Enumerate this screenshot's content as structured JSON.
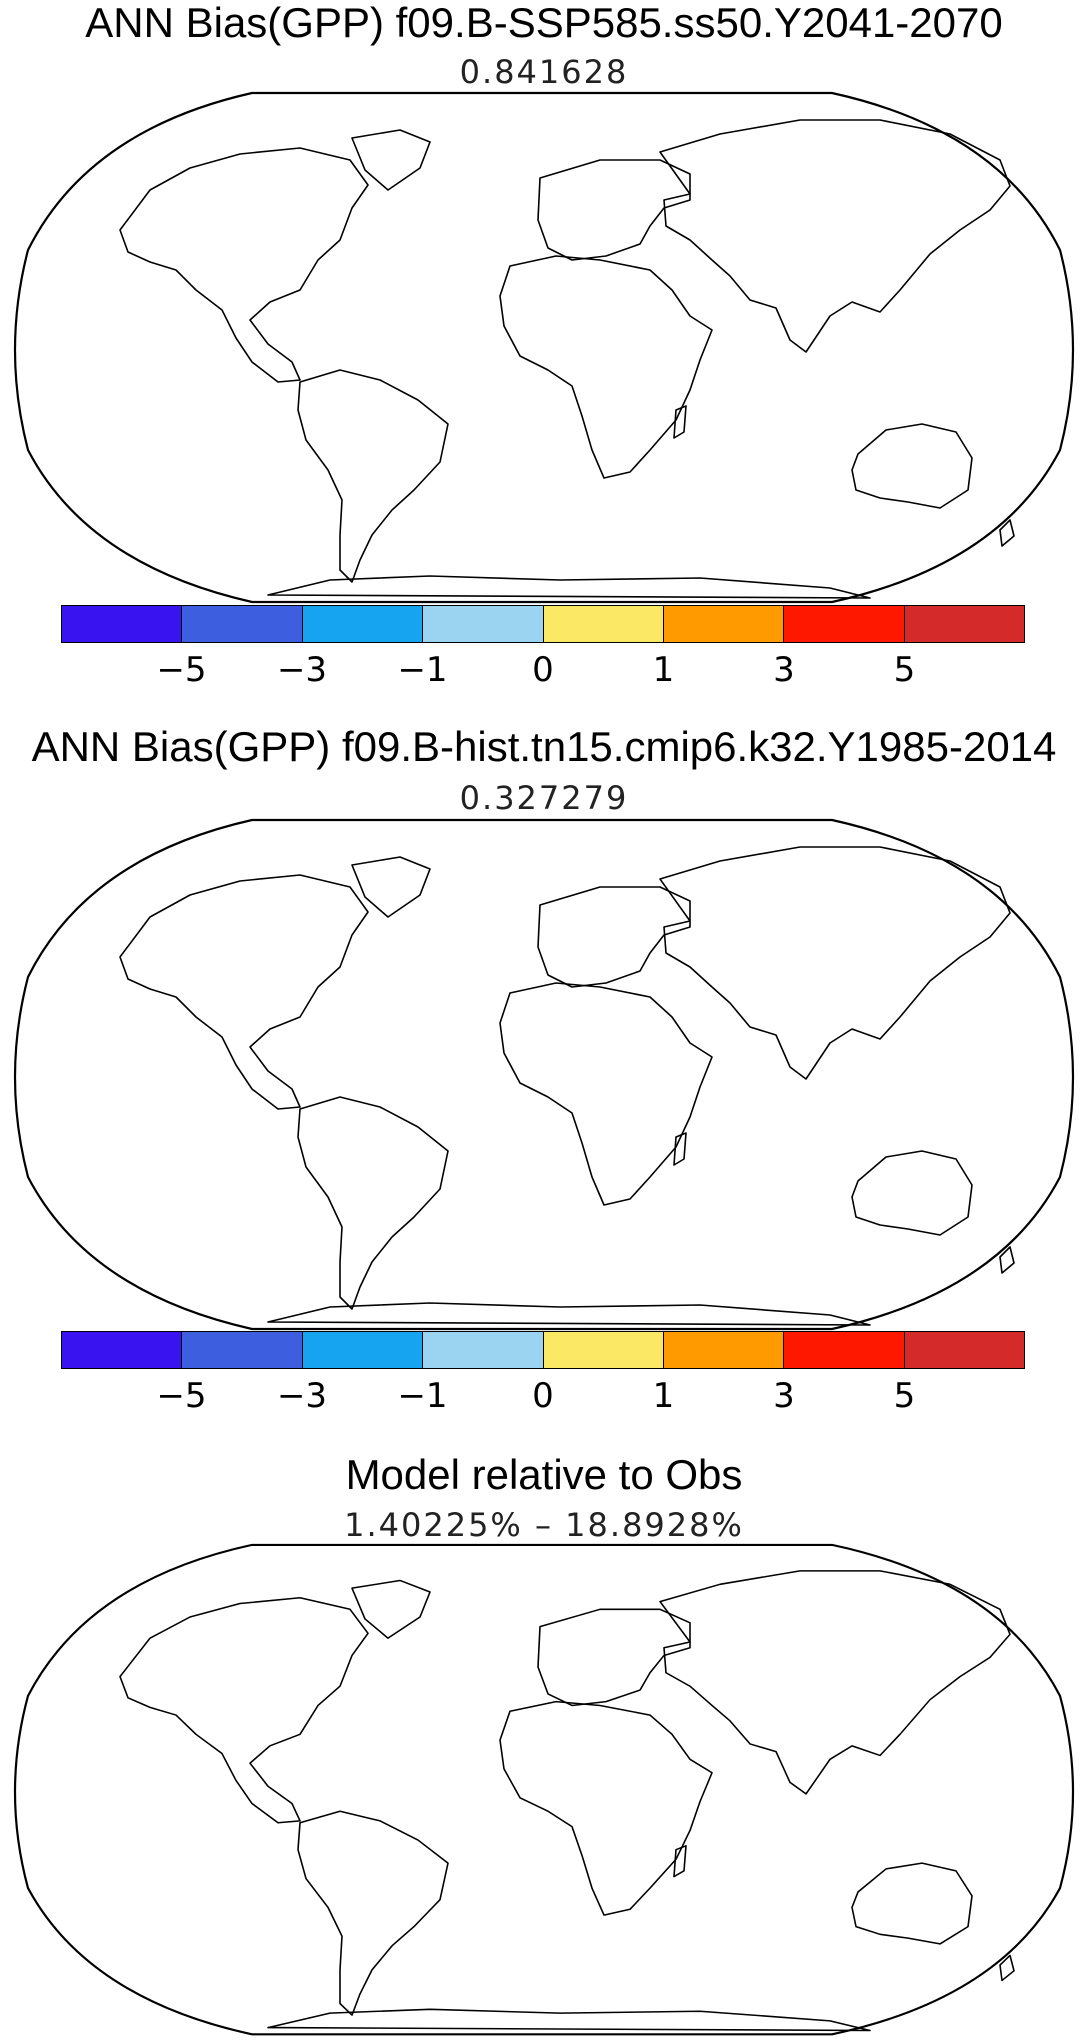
{
  "panels": [
    {
      "title": "ANN Bias(GPP) f09.B-SSP585.ss50.Y2041-2070",
      "subtitle": "0.841628"
    },
    {
      "title": "ANN Bias(GPP) f09.B-hist.tn15.cmip6.k32.Y1985-2014",
      "subtitle": "0.327279"
    },
    {
      "title": "Model relative to Obs",
      "subtitle": "1.40225% – 18.8928%"
    }
  ],
  "colorbar": {
    "colors": [
      "#3a14f0",
      "#3e5ee0",
      "#16a4f0",
      "#9ad4f0",
      "#fbe966",
      "#ff9a00",
      "#ff1800",
      "#d42a2a"
    ],
    "tick_labels": [
      "−5",
      "−3",
      "−1",
      "0",
      "1",
      "3",
      "5"
    ]
  }
}
